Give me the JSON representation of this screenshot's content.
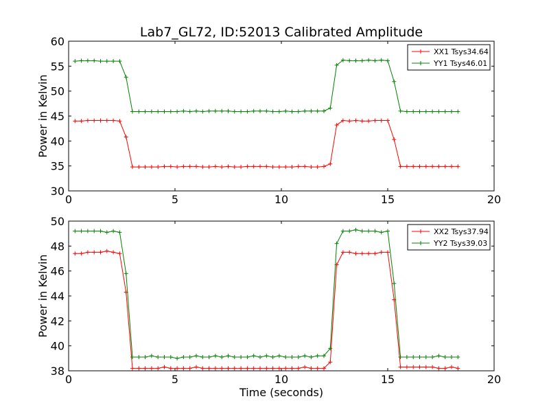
{
  "figure": {
    "title": "Lab7_GL72, ID:52013 Calibrated Amplitude",
    "xlabel": "Time (seconds)"
  },
  "chart_data": [
    {
      "type": "line",
      "title": "Lab7_GL72, ID:52013 Calibrated Amplitude",
      "xlabel": "",
      "ylabel": "Power in Kelvin",
      "xlim": [
        0,
        20
      ],
      "ylim": [
        30,
        60
      ],
      "xticks": [
        0,
        5,
        10,
        15,
        20
      ],
      "yticks": [
        30,
        35,
        40,
        45,
        50,
        55,
        60
      ],
      "grid": false,
      "legend_position": "top-right",
      "x": [
        0.3,
        0.6,
        0.9,
        1.2,
        1.5,
        1.8,
        2.1,
        2.4,
        2.7,
        3.0,
        3.3,
        3.6,
        3.9,
        4.2,
        4.5,
        4.8,
        5.1,
        5.4,
        5.7,
        6.0,
        6.3,
        6.6,
        6.9,
        7.2,
        7.5,
        7.8,
        8.1,
        8.4,
        8.7,
        9.0,
        9.3,
        9.6,
        9.9,
        10.2,
        10.5,
        10.8,
        11.1,
        11.4,
        11.7,
        12.0,
        12.3,
        12.6,
        12.9,
        13.2,
        13.5,
        13.8,
        14.1,
        14.4,
        14.7,
        15.0,
        15.3,
        15.6,
        15.9,
        16.2,
        16.5,
        16.8,
        17.1,
        17.4,
        17.7,
        18.0,
        18.3
      ],
      "series": [
        {
          "name": "XX1 Tsys34.64",
          "color": "#ff0000",
          "values": [
            44.0,
            44.0,
            44.1,
            44.1,
            44.1,
            44.1,
            44.1,
            44.0,
            40.8,
            34.8,
            34.8,
            34.8,
            34.8,
            34.8,
            34.9,
            34.9,
            34.8,
            34.9,
            34.9,
            34.9,
            34.8,
            34.8,
            34.9,
            34.8,
            34.9,
            34.8,
            34.8,
            34.9,
            34.9,
            34.9,
            34.9,
            34.8,
            34.8,
            34.8,
            34.8,
            34.9,
            34.9,
            34.8,
            34.8,
            34.9,
            35.4,
            43.2,
            44.1,
            44.0,
            44.1,
            44.0,
            44.0,
            44.1,
            44.1,
            44.1,
            40.3,
            34.9,
            34.9,
            34.9,
            34.9,
            34.9,
            34.9,
            34.9,
            34.9,
            34.9,
            34.9
          ]
        },
        {
          "name": "YY1 Tsys46.01",
          "color": "#008000",
          "values": [
            56.0,
            56.1,
            56.1,
            56.1,
            56.0,
            56.0,
            56.0,
            56.0,
            52.8,
            45.9,
            45.9,
            45.9,
            45.9,
            45.9,
            45.9,
            45.9,
            45.9,
            46.0,
            45.9,
            46.0,
            45.9,
            46.0,
            46.0,
            46.0,
            46.0,
            45.9,
            45.9,
            45.9,
            46.0,
            46.0,
            46.0,
            45.9,
            45.9,
            46.0,
            45.9,
            45.9,
            46.0,
            46.0,
            46.0,
            46.0,
            46.6,
            55.2,
            56.2,
            56.1,
            56.1,
            56.1,
            56.2,
            56.1,
            56.2,
            56.1,
            51.9,
            46.0,
            45.9,
            45.9,
            45.9,
            45.9,
            45.9,
            45.9,
            45.9,
            45.9,
            45.9
          ]
        }
      ]
    },
    {
      "type": "line",
      "title": "",
      "xlabel": "Time (seconds)",
      "ylabel": "Power in Kelvin",
      "xlim": [
        0,
        20
      ],
      "ylim": [
        38,
        50
      ],
      "xticks": [
        0,
        5,
        10,
        15,
        20
      ],
      "yticks": [
        38,
        40,
        42,
        44,
        46,
        48,
        50
      ],
      "grid": false,
      "legend_position": "top-right",
      "x": [
        0.3,
        0.6,
        0.9,
        1.2,
        1.5,
        1.8,
        2.1,
        2.4,
        2.7,
        3.0,
        3.3,
        3.6,
        3.9,
        4.2,
        4.5,
        4.8,
        5.1,
        5.4,
        5.7,
        6.0,
        6.3,
        6.6,
        6.9,
        7.2,
        7.5,
        7.8,
        8.1,
        8.4,
        8.7,
        9.0,
        9.3,
        9.6,
        9.9,
        10.2,
        10.5,
        10.8,
        11.1,
        11.4,
        11.7,
        12.0,
        12.3,
        12.6,
        12.9,
        13.2,
        13.5,
        13.8,
        14.1,
        14.4,
        14.7,
        15.0,
        15.3,
        15.6,
        15.9,
        16.2,
        16.5,
        16.8,
        17.1,
        17.4,
        17.7,
        18.0,
        18.3
      ],
      "series": [
        {
          "name": "XX2 Tsys37.94",
          "color": "#ff0000",
          "values": [
            47.4,
            47.4,
            47.5,
            47.5,
            47.5,
            47.6,
            47.5,
            47.4,
            44.3,
            38.2,
            38.2,
            38.2,
            38.2,
            38.2,
            38.3,
            38.2,
            38.2,
            38.2,
            38.2,
            38.3,
            38.2,
            38.2,
            38.2,
            38.2,
            38.2,
            38.2,
            38.2,
            38.2,
            38.2,
            38.2,
            38.2,
            38.2,
            38.2,
            38.2,
            38.2,
            38.2,
            38.3,
            38.2,
            38.2,
            38.2,
            38.7,
            46.5,
            47.5,
            47.5,
            47.4,
            47.4,
            47.4,
            47.4,
            47.5,
            47.5,
            43.7,
            38.3,
            38.3,
            38.3,
            38.3,
            38.3,
            38.3,
            38.2,
            38.2,
            38.3,
            38.2
          ]
        },
        {
          "name": "YY2 Tsys39.03",
          "color": "#008000",
          "values": [
            49.2,
            49.2,
            49.2,
            49.2,
            49.2,
            49.1,
            49.2,
            49.1,
            45.8,
            39.1,
            39.1,
            39.1,
            39.2,
            39.1,
            39.1,
            39.1,
            39.0,
            39.1,
            39.1,
            39.2,
            39.1,
            39.1,
            39.2,
            39.1,
            39.2,
            39.1,
            39.1,
            39.1,
            39.2,
            39.1,
            39.2,
            39.1,
            39.2,
            39.1,
            39.1,
            39.1,
            39.2,
            39.1,
            39.2,
            39.2,
            39.8,
            48.2,
            49.2,
            49.2,
            49.3,
            49.2,
            49.2,
            49.2,
            49.1,
            49.2,
            45.0,
            39.1,
            39.1,
            39.1,
            39.1,
            39.1,
            39.1,
            39.2,
            39.1,
            39.1,
            39.1
          ]
        }
      ]
    }
  ]
}
